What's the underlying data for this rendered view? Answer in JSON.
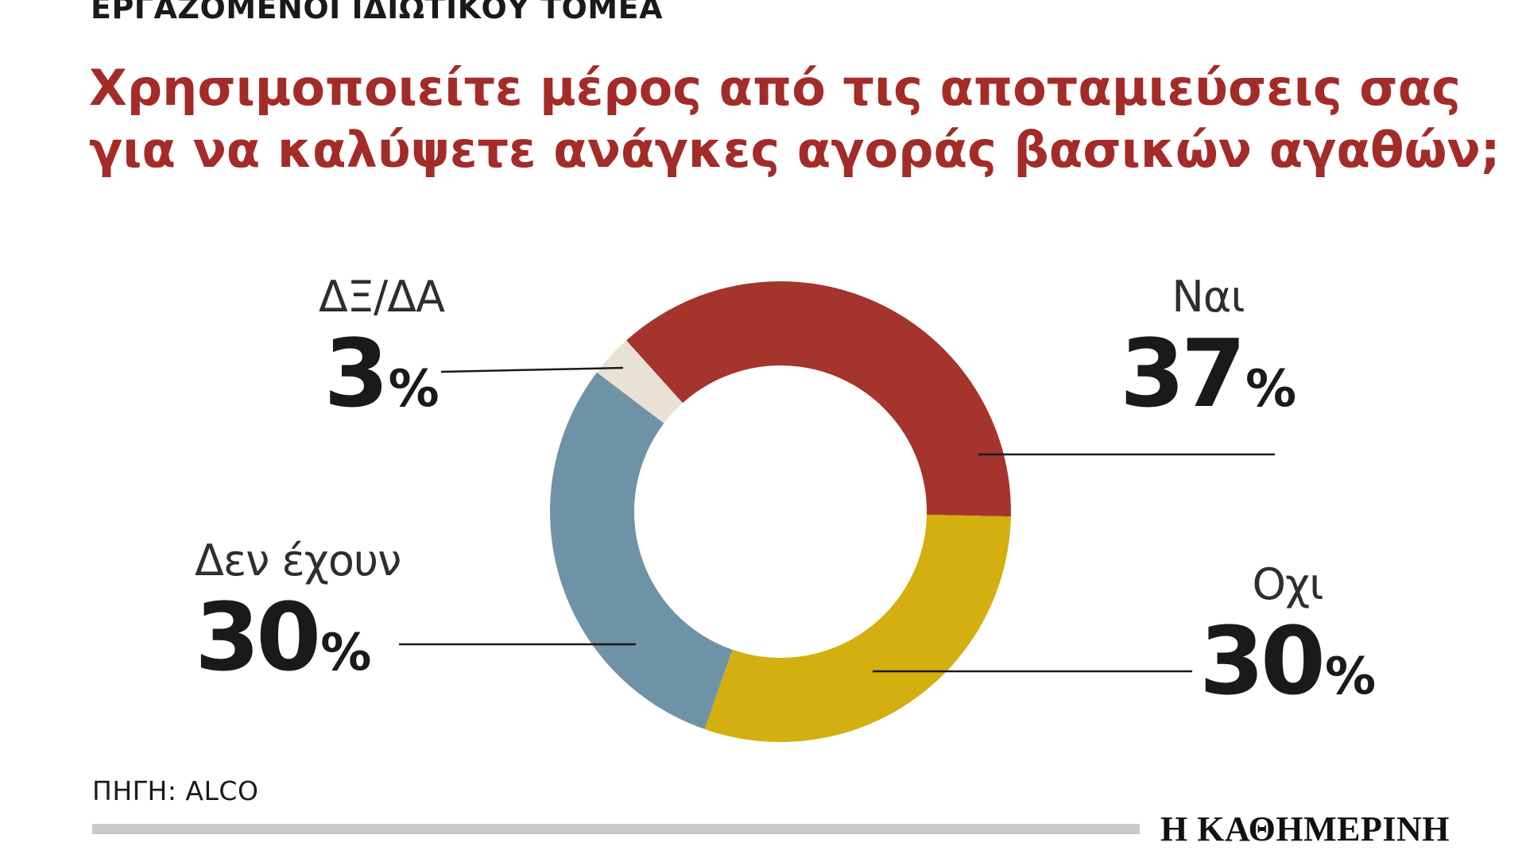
{
  "page": {
    "kicker": "ΕΡΓΑΖΟΜΕΝΟΙ ΙΔΙΩΤΙΚΟΥ ΤΟΜΕΑ",
    "title_line1": "Χρησιμοποιείτε μέρος από τις αποταμιεύσεις σας",
    "title_line2": "για να καλύψετε ανάγκες αγοράς βασικών αγαθών;",
    "source_label": "ΠΗΓΗ: ALCO",
    "brand": "Η ΚΑΘΗΜΕΡΙΝΗ",
    "title_color": "#a32b28"
  },
  "chart_data": {
    "type": "pie",
    "subtype": "donut",
    "title": "Χρησιμοποιείτε μέρος από τις αποταμιεύσεις σας για να καλύψετε ανάγκες αγοράς βασικών αγαθών;",
    "audience": "ΕΡΓΑΖΟΜΕΝΟΙ ΙΔΙΩΤΙΚΟΥ ΤΟΜΕΑ",
    "source": "ΠΗΓΗ: ALCO",
    "percent_sign": "%",
    "start_angle": 318,
    "legend_position": "callouts",
    "segments": [
      {
        "label": "Ναι",
        "value": 37,
        "color": "#a5342c"
      },
      {
        "label": "Οχι",
        "value": 30,
        "color": "#d4af10"
      },
      {
        "label": "Δεν έχουν",
        "value": 30,
        "color": "#6e93a7"
      },
      {
        "label": "ΔΞ/ΔΑ",
        "value": 3,
        "color": "#e9e1d3"
      }
    ]
  }
}
